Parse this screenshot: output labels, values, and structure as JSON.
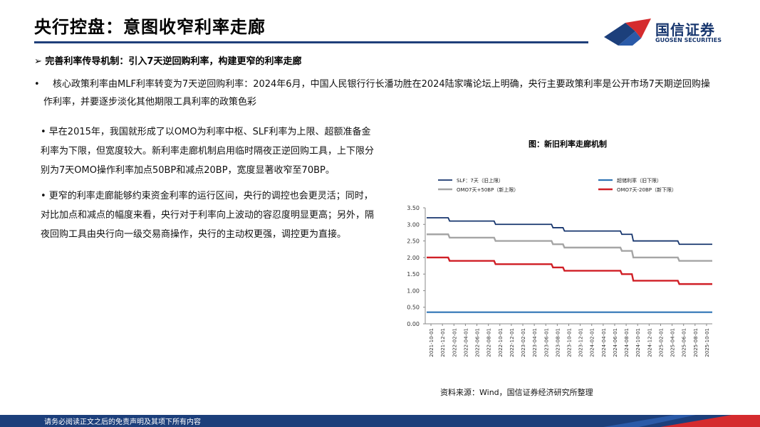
{
  "header": {
    "title": "央行控盘：意图收窄利率走廊",
    "logo_cn": "国信证券",
    "logo_en": "GUOSEN SECURITIES",
    "colors": {
      "brand_blue": "#1c3f7b",
      "brand_red": "#d52b2e"
    }
  },
  "sub_heading": "➢ 完善利率传导机制：引入7天逆回购利率，构建更窄的利率走廊",
  "paragraph1": {
    "bullet": "•",
    "text": "核心政策利率由MLF利率转变为7天逆回购利率：2024年6月，中国人民银行行长潘功胜在2024陆家嘴论坛上明确，央行主要政策利率是公开市场7天期逆回购操作利率，并要逐步淡化其他期限工具利率的政策色彩"
  },
  "left_column": {
    "points": [
      "• 早在2015年，我国就形成了以OMO为利率中枢、SLF利率为上限、超额准备金利率为下限，但宽度较大。新利率走廊机制启用临时隔夜正逆回购工具，上下限分别为7天OMO操作利率加点50BP和减点20BP，宽度显著收窄至70BP。",
      "• 更窄的利率走廊能够约束资金利率的运行区间，央行的调控也会更灵活；同时，对比加点和减点的幅度来看，央行对于利率向上波动的容忍度明显更高；另外，隔夜回购工具由央行向一级交易商操作，央行的主动权更强，调控更为直接。"
    ]
  },
  "chart_title": "图：新旧利率走廊机制",
  "source": "资料来源：Wind，国信证券经济研究所整理",
  "footer": {
    "text": "请务必阅读正文之后的免责声明及其项下所有内容"
  },
  "chart_data": {
    "type": "line",
    "title": "图：新旧利率走廊机制",
    "ylim": [
      0,
      3.5
    ],
    "yticks": [
      "3.50",
      "3.00",
      "2.50",
      "2.00",
      "1.50",
      "1.00",
      "0.50",
      "0.00"
    ],
    "x": [
      "2021-10-01",
      "2021-12-01",
      "2022-02-01",
      "2022-04-01",
      "2022-06-01",
      "2022-08-01",
      "2022-10-01",
      "2022-12-01",
      "2023-02-01",
      "2023-04-01",
      "2023-06-01",
      "2023-08-01",
      "2023-10-01",
      "2023-12-01",
      "2024-02-01",
      "2024-04-01",
      "2024-06-01",
      "2024-08-01",
      "2024-10-01",
      "2024-12-01",
      "2025-02-01",
      "2025-04-01",
      "2025-06-01",
      "2025-08-01",
      "2025-10-01"
    ],
    "legend_placement": "top",
    "grid": false,
    "series": [
      {
        "name": "SLF：7天（旧上限）",
        "color": "#17366e",
        "width": 1.8,
        "values": [
          3.2,
          3.2,
          3.1,
          3.1,
          3.1,
          3.1,
          3.0,
          3.0,
          3.0,
          3.0,
          3.0,
          2.9,
          2.8,
          2.8,
          2.8,
          2.8,
          2.8,
          2.7,
          2.5,
          2.5,
          2.5,
          2.5,
          2.4,
          2.4,
          2.4
        ]
      },
      {
        "name": "超储利率（旧下限）",
        "color": "#2f74b5",
        "width": 2.2,
        "values": [
          0.35,
          0.35,
          0.35,
          0.35,
          0.35,
          0.35,
          0.35,
          0.35,
          0.35,
          0.35,
          0.35,
          0.35,
          0.35,
          0.35,
          0.35,
          0.35,
          0.35,
          0.35,
          0.35,
          0.35,
          0.35,
          0.35,
          0.35,
          0.35,
          0.35
        ]
      },
      {
        "name": "OMO7天+50BP（新上限）",
        "color": "#a5a5a5",
        "width": 2.4,
        "values": [
          2.7,
          2.7,
          2.6,
          2.6,
          2.6,
          2.6,
          2.5,
          2.5,
          2.5,
          2.5,
          2.5,
          2.4,
          2.3,
          2.3,
          2.3,
          2.3,
          2.3,
          2.2,
          2.0,
          2.0,
          2.0,
          2.0,
          1.9,
          1.9,
          1.9
        ]
      },
      {
        "name": "OMO7天-20BP（新下限）",
        "color": "#d01f26",
        "width": 2.4,
        "values": [
          2.0,
          2.0,
          1.9,
          1.9,
          1.9,
          1.9,
          1.8,
          1.8,
          1.8,
          1.8,
          1.8,
          1.7,
          1.6,
          1.6,
          1.6,
          1.6,
          1.6,
          1.5,
          1.3,
          1.3,
          1.3,
          1.3,
          1.2,
          1.2,
          1.2
        ]
      }
    ]
  }
}
